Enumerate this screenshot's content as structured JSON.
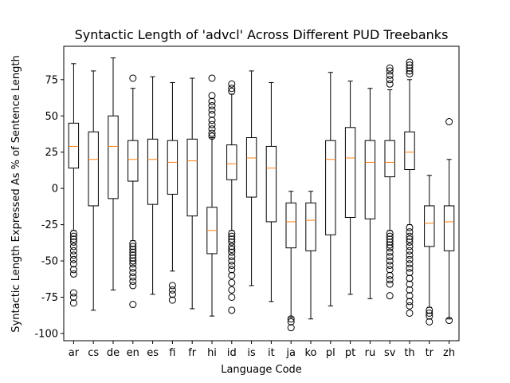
{
  "chart_data": {
    "type": "boxplot",
    "title": "Syntactic Length of 'advcl' Across Different PUD Treebanks",
    "xlabel": "Language Code",
    "ylabel": "Syntactic Length Expressed As % of Sentence Length",
    "ylim": [
      -105,
      98
    ],
    "yticks": [
      -100,
      -75,
      -50,
      -25,
      0,
      25,
      50,
      75
    ],
    "grid": false,
    "colors": {
      "box": "#000000",
      "median": "#ff7f0e",
      "background": "#ffffff"
    },
    "categories": [
      "ar",
      "cs",
      "de",
      "en",
      "es",
      "fi",
      "fr",
      "hi",
      "id",
      "is",
      "it",
      "ja",
      "ko",
      "pl",
      "pt",
      "ru",
      "sv",
      "th",
      "tr",
      "zh"
    ],
    "boxes": [
      {
        "label": "ar",
        "whislo": -29,
        "q1": 14,
        "median": 29,
        "q3": 45,
        "whishi": 86,
        "fliers": [
          -31,
          -33,
          -35,
          -37,
          -40,
          -43,
          -46,
          -49,
          -52,
          -56,
          -59,
          -72,
          -75,
          -79
        ]
      },
      {
        "label": "cs",
        "whislo": -84,
        "q1": -12,
        "median": 20,
        "q3": 39,
        "whishi": 81,
        "fliers": []
      },
      {
        "label": "de",
        "whislo": -70,
        "q1": -7,
        "median": 29,
        "q3": 50,
        "whishi": 90,
        "fliers": []
      },
      {
        "label": "en",
        "whislo": -36,
        "q1": 5,
        "median": 20,
        "q3": 33,
        "whishi": 69,
        "fliers": [
          76,
          -38,
          -40,
          -42,
          -44,
          -46,
          -48,
          -50,
          -52,
          -55,
          -58,
          -61,
          -64,
          -67,
          -80
        ]
      },
      {
        "label": "es",
        "whislo": -73,
        "q1": -11,
        "median": 20,
        "q3": 34,
        "whishi": 77,
        "fliers": []
      },
      {
        "label": "fi",
        "whislo": -57,
        "q1": -4,
        "median": 18,
        "q3": 33,
        "whishi": 73,
        "fliers": [
          -67,
          -70,
          -73,
          -77
        ]
      },
      {
        "label": "fr",
        "whislo": -83,
        "q1": -19,
        "median": 19,
        "q3": 34,
        "whishi": 76,
        "fliers": []
      },
      {
        "label": "hi",
        "whislo": -88,
        "q1": -45,
        "median": -29,
        "q3": -13,
        "whishi": 35,
        "fliers": [
          36,
          38,
          41,
          44,
          47,
          51,
          54,
          57,
          60,
          64,
          76
        ]
      },
      {
        "label": "id",
        "whislo": -29,
        "q1": 6,
        "median": 17,
        "q3": 30,
        "whishi": 65,
        "fliers": [
          67,
          69,
          72,
          -31,
          -33,
          -35,
          -37,
          -40,
          -42,
          -44,
          -47,
          -50,
          -53,
          -56,
          -60,
          -65,
          -70,
          -75,
          -84
        ]
      },
      {
        "label": "is",
        "whislo": -67,
        "q1": -6,
        "median": 21,
        "q3": 35,
        "whishi": 81,
        "fliers": []
      },
      {
        "label": "it",
        "whislo": -78,
        "q1": -23,
        "median": 14,
        "q3": 29,
        "whishi": 73,
        "fliers": []
      },
      {
        "label": "ja",
        "whislo": -89,
        "q1": -41,
        "median": -23,
        "q3": -10,
        "whishi": -2,
        "fliers": [
          -90,
          -92,
          -96
        ]
      },
      {
        "label": "ko",
        "whislo": -90,
        "q1": -43,
        "median": -22,
        "q3": -10,
        "whishi": -2,
        "fliers": []
      },
      {
        "label": "pl",
        "whislo": -81,
        "q1": -32,
        "median": 20,
        "q3": 33,
        "whishi": 80,
        "fliers": []
      },
      {
        "label": "pt",
        "whislo": -73,
        "q1": -20,
        "median": 21,
        "q3": 42,
        "whishi": 74,
        "fliers": []
      },
      {
        "label": "ru",
        "whislo": -76,
        "q1": -21,
        "median": 18,
        "q3": 33,
        "whishi": 69,
        "fliers": []
      },
      {
        "label": "sv",
        "whislo": -29,
        "q1": 8,
        "median": 18,
        "q3": 33,
        "whishi": 68,
        "fliers": [
          72,
          75,
          78,
          81,
          83,
          -31,
          -33,
          -35,
          -37,
          -39,
          -41,
          -44,
          -47,
          -50,
          -53,
          -56,
          -60,
          -63,
          -66,
          -74
        ]
      },
      {
        "label": "th",
        "whislo": -25,
        "q1": 13,
        "median": 25,
        "q3": 39,
        "whishi": 75,
        "fliers": [
          79,
          81,
          83,
          85,
          87,
          -27,
          -30,
          -33,
          -35,
          -37,
          -40,
          -43,
          -46,
          -49,
          -52,
          -55,
          -58,
          -62,
          -66,
          -70,
          -74,
          -78,
          -81,
          -86
        ]
      },
      {
        "label": "tr",
        "whislo": -82,
        "q1": -40,
        "median": -24,
        "q3": -12,
        "whishi": 9,
        "fliers": [
          -84,
          -86,
          -88,
          -92
        ]
      },
      {
        "label": "zh",
        "whislo": -90,
        "q1": -43,
        "median": -23,
        "q3": -12,
        "whishi": 20,
        "fliers": [
          46,
          -91
        ]
      }
    ]
  }
}
